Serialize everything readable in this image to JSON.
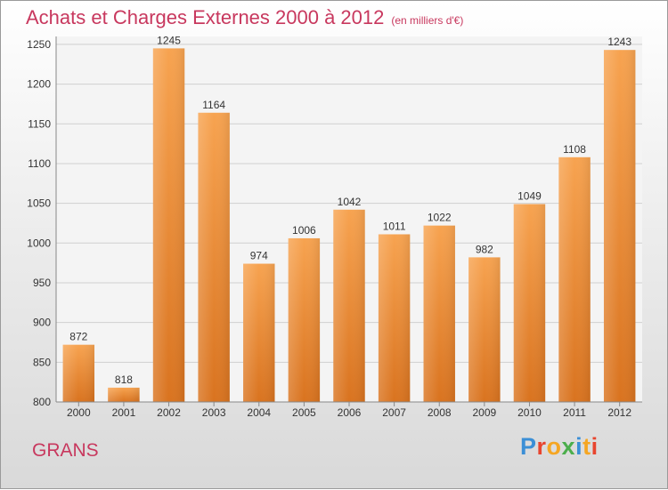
{
  "chart_data": {
    "type": "bar",
    "title": "Achats et Charges Externes 2000 à 2012",
    "subtitle": "(en milliers d'€)",
    "categories": [
      "2000",
      "2001",
      "2002",
      "2003",
      "2004",
      "2005",
      "2006",
      "2007",
      "2008",
      "2009",
      "2010",
      "2011",
      "2012"
    ],
    "values": [
      872,
      818,
      1245,
      1164,
      974,
      1006,
      1042,
      1011,
      1022,
      982,
      1049,
      1108,
      1243
    ],
    "ylim": [
      800,
      1260
    ],
    "yticks": [
      800,
      850,
      900,
      950,
      1000,
      1050,
      1100,
      1150,
      1200,
      1250
    ],
    "grid": true,
    "bar_color": "#f0963c"
  },
  "footer": {
    "city": "GRANS",
    "logo": "Proxiti",
    "logo_colors": [
      "#3b8fd6",
      "#e8452f",
      "#f5a623",
      "#4cae4c",
      "#3b8fd6",
      "#f5a623",
      "#e8452f"
    ]
  }
}
